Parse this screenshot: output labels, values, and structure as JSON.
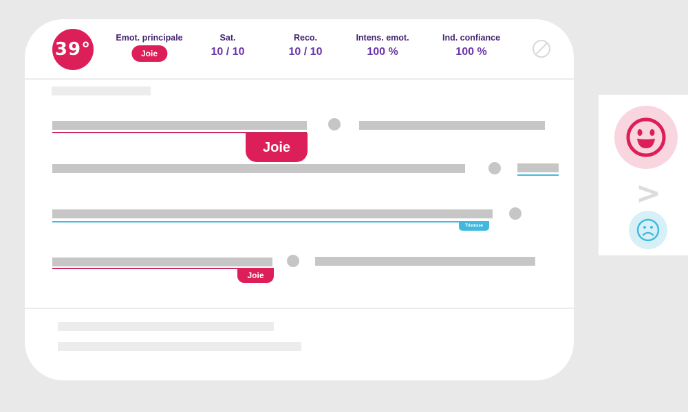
{
  "temperature": "39°",
  "metrics": {
    "emotion": {
      "label": "Emot. principale",
      "value": "Joie"
    },
    "sat": {
      "label": "Sat.",
      "value": "10 / 10"
    },
    "reco": {
      "label": "Reco.",
      "value": "10 / 10"
    },
    "intensity": {
      "label": "Intens. emot.",
      "value": "100 %"
    },
    "confidence": {
      "label": "Ind. confiance",
      "value": "100 %"
    }
  },
  "segments": {
    "seg1_tag": "Joie",
    "seg3_tag": "Tristesse",
    "seg4_tag": "Joie"
  },
  "comparison": {
    "symbol": ">",
    "positive_icon": "happy-face-icon",
    "negative_icon": "sad-face-icon"
  },
  "colors": {
    "accent_red": "#dd1f59",
    "accent_blue": "#41b9de",
    "metric_purple": "#6a35a8",
    "background": "#e9e9e9"
  }
}
